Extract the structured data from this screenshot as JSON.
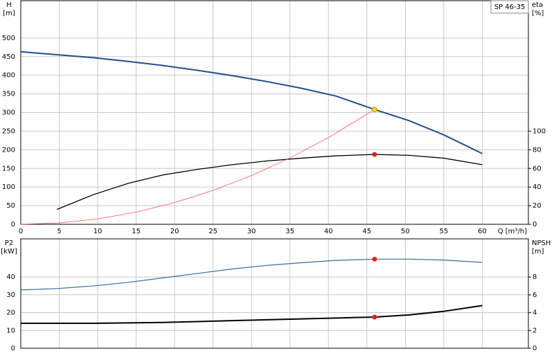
{
  "chart_data": [
    {
      "type": "line",
      "title": "SP 46-35",
      "xlabel": "Q [m³/h]",
      "ylabel": "H",
      "yunit": "[m]",
      "y2label": "eta",
      "y2unit": "[%]",
      "xlim": [
        0,
        66
      ],
      "xticks": [
        0,
        5,
        10,
        15,
        20,
        25,
        30,
        35,
        40,
        45,
        50,
        55,
        60
      ],
      "xtick_labels": true,
      "ylim": [
        0,
        600
      ],
      "yticks": [
        0,
        50,
        100,
        150,
        200,
        250,
        300,
        350,
        400,
        450,
        500
      ],
      "y2lim": [
        0,
        240
      ],
      "y2ticks": [
        0,
        20,
        40,
        60,
        80,
        100
      ],
      "grid": true,
      "series": [
        {
          "color": "#1f4e8c",
          "width": 2,
          "x": [
            0,
            4.7,
            9.5,
            14,
            18.5,
            23,
            27.5,
            32,
            36.5,
            41,
            46,
            50.5,
            55,
            60
          ],
          "values": [
            463,
            455,
            447,
            437,
            426,
            413,
            399,
            383,
            365,
            344,
            308,
            278,
            240,
            190
          ]
        },
        {
          "color": "#000000",
          "width": 1.3,
          "axis": "y2",
          "x": [
            4.7,
            9.5,
            14,
            18.5,
            23,
            27.5,
            32,
            36.5,
            41,
            46,
            50.5,
            55,
            60
          ],
          "values": [
            16,
            32,
            44,
            53,
            59,
            64,
            68,
            71,
            73.5,
            75,
            74,
            71,
            64
          ]
        },
        {
          "color": "#ff5050",
          "width": 0.8,
          "x": [
            0,
            5,
            10,
            15,
            20,
            25,
            30,
            35,
            40,
            46
          ],
          "values": [
            0,
            3.6,
            14.6,
            32.8,
            58.2,
            91,
            131,
            178,
            233,
            308
          ]
        }
      ],
      "points": [
        {
          "x": 46,
          "y": 308,
          "color": "#ffd700"
        },
        {
          "x": 46,
          "y": 75,
          "axis": "y2",
          "color": "#e02020"
        }
      ]
    },
    {
      "type": "line",
      "ylabel": "P2",
      "yunit": "[kW]",
      "y2label": "NPSH",
      "y2unit": "[m]",
      "xlim": [
        0,
        66
      ],
      "xticks": [
        0,
        5,
        10,
        15,
        20,
        25,
        30,
        35,
        40,
        45,
        50,
        55,
        60
      ],
      "xtick_labels": false,
      "ylim": [
        0,
        61.4
      ],
      "yticks": [
        0,
        10,
        20,
        30,
        40
      ],
      "y2lim": [
        0,
        12.3
      ],
      "y2ticks": [
        0,
        2,
        4,
        6,
        8
      ],
      "grid": true,
      "series": [
        {
          "color": "#3a6a9a",
          "width": 1.2,
          "x": [
            0,
            4.7,
            9.5,
            14,
            18.5,
            23,
            27.5,
            32,
            36.5,
            41,
            46,
            50.5,
            55,
            60
          ],
          "values": [
            32.7,
            33.5,
            35,
            37,
            39.5,
            42,
            44.5,
            46.5,
            48,
            49.3,
            50,
            50,
            49.5,
            48.2
          ]
        },
        {
          "color": "#000000",
          "width": 2,
          "axis": "y2",
          "x": [
            0,
            4.7,
            9.5,
            14,
            18.5,
            23,
            27.5,
            32,
            36.5,
            41,
            46,
            50.5,
            55,
            60
          ],
          "values": [
            2.8,
            2.8,
            2.8,
            2.85,
            2.9,
            3.0,
            3.1,
            3.2,
            3.3,
            3.4,
            3.5,
            3.75,
            4.15,
            4.8
          ]
        }
      ],
      "points": [
        {
          "x": 46,
          "y": 50,
          "color": "#e02020"
        },
        {
          "x": 46,
          "y": 3.5,
          "axis": "y2",
          "color": "#e02020"
        }
      ]
    }
  ]
}
